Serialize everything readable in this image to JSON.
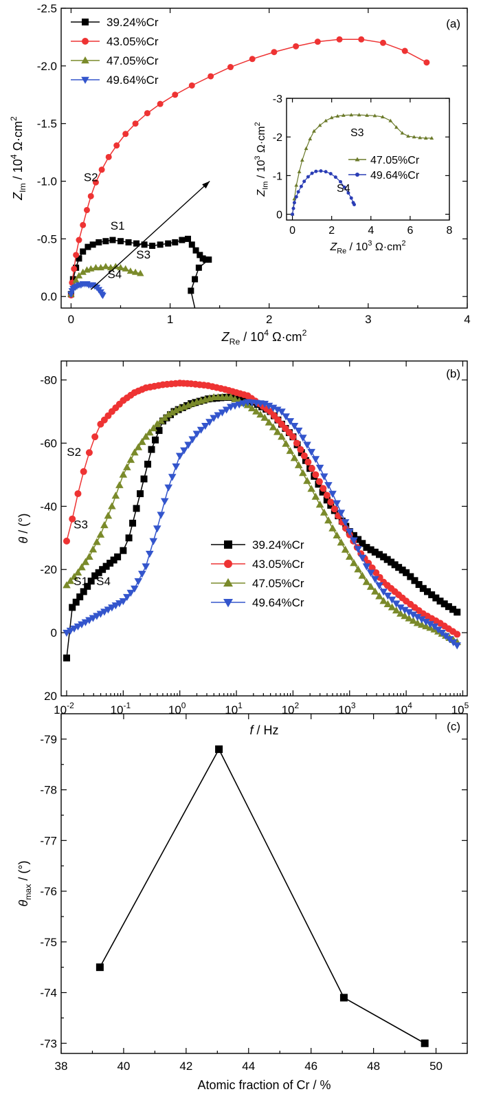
{
  "chart_data": [
    {
      "type": "scatter",
      "panel_label": "(a)",
      "xlabel": {
        "main": "Z",
        "sub": "Re",
        "unit": " / 10",
        "sup": "4",
        "rest": " Ω·cm",
        "sup2": "2"
      },
      "ylabel": {
        "main": "Z",
        "sub": "Im",
        "unit": " / 10",
        "sup": "4",
        "rest": " Ω·cm",
        "sup2": "2"
      },
      "xlim": [
        -0.1,
        4
      ],
      "ylim": [
        0.1,
        -2.5
      ],
      "xticks": [
        {
          "v": 0,
          "label": "0"
        },
        {
          "v": 1,
          "label": "1"
        },
        {
          "v": 2,
          "label": "2"
        },
        {
          "v": 3,
          "label": "3"
        },
        {
          "v": 4,
          "label": "4"
        }
      ],
      "yticks": [
        {
          "v": 0,
          "label": "0.0"
        },
        {
          "v": -0.5,
          "label": "-0.5"
        },
        {
          "v": -1.0,
          "label": "-1.0"
        },
        {
          "v": -1.5,
          "label": "-1.5"
        },
        {
          "v": -2.0,
          "label": "-2.0"
        },
        {
          "v": -2.5,
          "label": "-2.5"
        }
      ],
      "legend_position": "top-left",
      "series": [
        {
          "name": "39.24%Cr",
          "color": "#000000",
          "marker": "square",
          "x": [
            0.0,
            0.02,
            0.05,
            0.08,
            0.12,
            0.17,
            0.22,
            0.28,
            0.35,
            0.42,
            0.5,
            0.58,
            0.66,
            0.74,
            0.82,
            0.9,
            0.98,
            1.05,
            1.12,
            1.18,
            1.22,
            1.26,
            1.3,
            1.33,
            1.36,
            1.39,
            1.29,
            1.25,
            1.21
          ],
          "y": [
            -0.02,
            -0.15,
            -0.25,
            -0.33,
            -0.39,
            -0.43,
            -0.45,
            -0.47,
            -0.48,
            -0.49,
            -0.48,
            -0.47,
            -0.46,
            -0.45,
            -0.44,
            -0.45,
            -0.46,
            -0.47,
            -0.49,
            -0.5,
            -0.45,
            -0.4,
            -0.36,
            -0.33,
            -0.32,
            -0.32,
            -0.25,
            -0.15,
            -0.05
          ]
        },
        {
          "name": "43.05%Cr",
          "color": "#ee3333",
          "marker": "circle",
          "x": [
            0.0,
            0.01,
            0.03,
            0.05,
            0.08,
            0.12,
            0.16,
            0.2,
            0.25,
            0.31,
            0.38,
            0.46,
            0.55,
            0.65,
            0.77,
            0.9,
            1.05,
            1.22,
            1.41,
            1.61,
            1.83,
            2.05,
            2.27,
            2.49,
            2.71,
            2.93,
            3.15,
            3.37,
            3.59
          ],
          "y": [
            -0.01,
            -0.12,
            -0.24,
            -0.36,
            -0.49,
            -0.62,
            -0.75,
            -0.87,
            -0.99,
            -1.1,
            -1.21,
            -1.31,
            -1.41,
            -1.5,
            -1.59,
            -1.67,
            -1.75,
            -1.83,
            -1.91,
            -1.99,
            -2.06,
            -2.12,
            -2.17,
            -2.21,
            -2.23,
            -2.23,
            -2.2,
            -2.13,
            -2.03
          ]
        },
        {
          "name": "47.05%Cr",
          "color": "#7a8a2a",
          "marker": "triangle-up",
          "x": [
            0.0,
            0.02,
            0.05,
            0.08,
            0.12,
            0.16,
            0.2,
            0.25,
            0.3,
            0.35,
            0.4,
            0.45,
            0.5,
            0.55,
            0.6,
            0.65,
            0.7
          ],
          "y": [
            -0.02,
            -0.08,
            -0.14,
            -0.18,
            -0.21,
            -0.23,
            -0.24,
            -0.25,
            -0.25,
            -0.26,
            -0.25,
            -0.26,
            -0.25,
            -0.24,
            -0.22,
            -0.21,
            -0.2
          ]
        },
        {
          "name": "49.64%Cr",
          "color": "#3355cc",
          "marker": "triangle-down",
          "x": [
            0.0,
            0.01,
            0.02,
            0.04,
            0.06,
            0.08,
            0.1,
            0.12,
            0.14,
            0.16,
            0.18,
            0.2,
            0.22,
            0.24,
            0.26,
            0.28,
            0.3,
            0.31,
            0.32
          ],
          "y": [
            -0.02,
            -0.05,
            -0.07,
            -0.08,
            -0.09,
            -0.1,
            -0.1,
            -0.11,
            -0.11,
            -0.11,
            -0.1,
            -0.1,
            -0.1,
            -0.09,
            -0.08,
            -0.06,
            -0.04,
            -0.02,
            -0.01
          ]
        }
      ],
      "annotations": [
        {
          "text": "S1",
          "x": 0.47,
          "y": -0.58
        },
        {
          "text": "S2",
          "x": 0.2,
          "y": -1.0
        },
        {
          "text": "S3",
          "x": 0.73,
          "y": -0.33
        },
        {
          "text": "S4",
          "x": 0.44,
          "y": -0.16
        }
      ],
      "arrow": {
        "x0": 0.2,
        "y0": -0.06,
        "x1": 1.4,
        "y1": -1.0
      },
      "inset": {
        "xlabel": {
          "main": "Z",
          "sub": "Re",
          "unit": " / 10",
          "sup": "3",
          "rest": " Ω·cm",
          "sup2": "2"
        },
        "ylabel": {
          "main": "Z",
          "sub": "Im",
          "unit": " / 10",
          "sup": "3",
          "rest": " Ω·cm",
          "sup2": "2"
        },
        "xlim": [
          -0.3,
          8
        ],
        "ylim": [
          0.15,
          -3
        ],
        "xticks": [
          {
            "v": 0,
            "label": "0"
          },
          {
            "v": 2,
            "label": "2"
          },
          {
            "v": 4,
            "label": "4"
          },
          {
            "v": 6,
            "label": "6"
          },
          {
            "v": 8,
            "label": "8"
          }
        ],
        "yticks": [
          {
            "v": 0,
            "label": "0"
          },
          {
            "v": -1,
            "label": "-1"
          },
          {
            "v": -2,
            "label": "-2"
          },
          {
            "v": -3,
            "label": "-3"
          }
        ],
        "series": [
          {
            "name": "47.05%Cr",
            "color": "#6b7a2a",
            "marker": "triangle-up",
            "x": [
              0.0,
              0.1,
              0.2,
              0.35,
              0.5,
              0.7,
              0.9,
              1.1,
              1.4,
              1.7,
              2.0,
              2.3,
              2.6,
              3.0,
              3.4,
              3.8,
              4.2,
              4.6,
              5.0,
              5.3,
              5.6,
              5.9,
              6.2,
              6.5,
              6.8,
              7.1
            ],
            "y": [
              0.0,
              -0.4,
              -0.75,
              -1.1,
              -1.4,
              -1.7,
              -1.95,
              -2.15,
              -2.3,
              -2.42,
              -2.5,
              -2.54,
              -2.56,
              -2.57,
              -2.57,
              -2.56,
              -2.55,
              -2.52,
              -2.42,
              -2.25,
              -2.1,
              -2.02,
              -2.0,
              -1.98,
              -1.97,
              -1.97
            ]
          },
          {
            "name": "49.64%Cr",
            "color": "#2a3db5",
            "marker": "circle",
            "x": [
              0.0,
              0.05,
              0.1,
              0.2,
              0.3,
              0.45,
              0.6,
              0.8,
              1.0,
              1.2,
              1.45,
              1.7,
              1.95,
              2.2,
              2.45,
              2.65,
              2.85,
              3.0,
              3.1,
              3.15
            ],
            "y": [
              0.0,
              -0.15,
              -0.3,
              -0.45,
              -0.58,
              -0.72,
              -0.85,
              -0.97,
              -1.06,
              -1.11,
              -1.12,
              -1.1,
              -1.05,
              -0.96,
              -0.84,
              -0.7,
              -0.55,
              -0.42,
              -0.3,
              -0.25
            ]
          }
        ],
        "annotations": [
          {
            "text": "S3",
            "x": 3.3,
            "y": -2.02
          },
          {
            "text": "S4",
            "x": 2.6,
            "y": -0.58
          }
        ]
      }
    },
    {
      "type": "scatter",
      "panel_label": "(b)",
      "xlabel": {
        "main": "f",
        "rest": " / Hz"
      },
      "ylabel": {
        "main": "θ",
        "rest": " / (°)"
      },
      "xscale": "log",
      "xlim": [
        0.008,
        120000
      ],
      "ylim": [
        20,
        -86
      ],
      "xticks": [
        {
          "v": 0.01,
          "b": "10",
          "e": "-2"
        },
        {
          "v": 0.1,
          "b": "10",
          "e": "-1"
        },
        {
          "v": 1,
          "b": "10",
          "e": "0"
        },
        {
          "v": 10,
          "b": "10",
          "e": "1"
        },
        {
          "v": 100,
          "b": "10",
          "e": "2"
        },
        {
          "v": 1000,
          "b": "10",
          "e": "3"
        },
        {
          "v": 10000,
          "b": "10",
          "e": "4"
        },
        {
          "v": 100000,
          "b": "10",
          "e": "5"
        }
      ],
      "yticks": [
        {
          "v": 20,
          "label": "20"
        },
        {
          "v": 0,
          "label": "0"
        },
        {
          "v": -20,
          "label": "-20"
        },
        {
          "v": -40,
          "label": "-40"
        },
        {
          "v": -60,
          "label": "-60"
        },
        {
          "v": -80,
          "label": "-80"
        }
      ],
      "legend_position": "center-right",
      "series": [
        {
          "name": "39.24%Cr",
          "color": "#000000",
          "marker": "square",
          "logx": [
            -2.0,
            -1.9,
            -1.7,
            -1.5,
            -1.3,
            -1.1,
            -1.0,
            -0.9,
            -0.7,
            -0.5,
            -0.3,
            -0.1,
            0.2,
            0.5,
            0.8,
            1.0,
            1.3,
            1.6,
            2.0,
            2.3,
            2.6,
            3.0,
            3.3,
            3.6,
            4.0,
            4.3,
            4.6,
            4.9
          ],
          "y": [
            8,
            -8,
            -13,
            -18,
            -21,
            -24,
            -26,
            -30,
            -44,
            -58,
            -67,
            -70,
            -72.5,
            -74,
            -74.5,
            -74.5,
            -73,
            -70,
            -62,
            -52,
            -42,
            -32,
            -27,
            -24,
            -19,
            -14,
            -10,
            -6.5
          ]
        },
        {
          "name": "43.05%Cr",
          "color": "#ee3333",
          "marker": "circle",
          "logx": [
            -2.0,
            -1.9,
            -1.8,
            -1.7,
            -1.6,
            -1.5,
            -1.4,
            -1.2,
            -1.0,
            -0.8,
            -0.6,
            -0.3,
            0.0,
            0.2,
            0.5,
            0.8,
            1.2,
            1.6,
            2.0,
            2.4,
            2.8,
            3.2,
            3.6,
            4.0,
            4.3,
            4.6,
            4.9
          ],
          "y": [
            -29,
            -36,
            -44,
            -51,
            -57,
            -62,
            -66,
            -70,
            -73.5,
            -76,
            -77.5,
            -78.5,
            -79,
            -78.8,
            -78.2,
            -77,
            -75,
            -70,
            -62,
            -50,
            -37,
            -25,
            -16,
            -10,
            -6,
            -3,
            0.5
          ]
        },
        {
          "name": "47.05%Cr",
          "color": "#7a8a2a",
          "marker": "triangle-up",
          "logx": [
            -2.0,
            -1.8,
            -1.6,
            -1.4,
            -1.2,
            -1.0,
            -0.8,
            -0.6,
            -0.4,
            -0.2,
            0.0,
            0.3,
            0.6,
            0.9,
            1.2,
            1.5,
            1.8,
            2.1,
            2.4,
            2.7,
            3.0,
            3.3,
            3.6,
            3.9,
            4.2,
            4.5,
            4.9
          ],
          "y": [
            -15,
            -19,
            -24,
            -31,
            -40,
            -50,
            -57,
            -62,
            -66,
            -69,
            -71,
            -73,
            -74.5,
            -74.5,
            -72,
            -68,
            -62,
            -53,
            -43,
            -33,
            -24,
            -16,
            -10,
            -6,
            -3,
            -1,
            3
          ]
        },
        {
          "name": "49.64%Cr",
          "color": "#3355cc",
          "marker": "triangle-down",
          "logx": [
            -2.0,
            -1.8,
            -1.6,
            -1.4,
            -1.2,
            -1.0,
            -0.8,
            -0.6,
            -0.4,
            -0.2,
            0.0,
            0.3,
            0.6,
            0.9,
            1.2,
            1.5,
            1.8,
            2.1,
            2.4,
            2.7,
            3.0,
            3.3,
            3.6,
            3.9,
            4.2,
            4.5,
            4.9
          ],
          "y": [
            0,
            -2,
            -4,
            -6,
            -8,
            -10,
            -14,
            -21,
            -33,
            -46,
            -56,
            -63,
            -68,
            -71.5,
            -73,
            -72.5,
            -70,
            -64,
            -55,
            -44,
            -32,
            -21,
            -13,
            -8,
            -5,
            -2,
            4
          ]
        }
      ],
      "annotations": [
        {
          "text": "S2",
          "logx": -1.87,
          "y": -56
        },
        {
          "text": "S3",
          "logx": -1.75,
          "y": -33
        },
        {
          "text": "S1",
          "logx": -1.75,
          "y": -15
        },
        {
          "text": "S4",
          "logx": -1.35,
          "y": -15
        }
      ]
    },
    {
      "type": "line",
      "panel_label": "(c)",
      "xlabel": {
        "main": "Atomic fraction of Cr / %"
      },
      "ylabel": {
        "main": "θ",
        "sub": "max",
        "rest": " / (°)"
      },
      "xlim": [
        38,
        51
      ],
      "ylim": [
        -72.8,
        -79.5
      ],
      "xticks": [
        {
          "v": 38,
          "label": "38"
        },
        {
          "v": 40,
          "label": "40"
        },
        {
          "v": 42,
          "label": "42"
        },
        {
          "v": 44,
          "label": "44"
        },
        {
          "v": 46,
          "label": "46"
        },
        {
          "v": 48,
          "label": "48"
        },
        {
          "v": 50,
          "label": "50"
        }
      ],
      "yticks": [
        {
          "v": -73,
          "label": "-73"
        },
        {
          "v": -74,
          "label": "-74"
        },
        {
          "v": -75,
          "label": "-75"
        },
        {
          "v": -76,
          "label": "-76"
        },
        {
          "v": -77,
          "label": "-77"
        },
        {
          "v": -78,
          "label": "-78"
        },
        {
          "v": -79,
          "label": "-79"
        }
      ],
      "series": [
        {
          "color": "#000000",
          "marker": "square",
          "x": [
            39.24,
            43.05,
            47.05,
            49.64
          ],
          "y": [
            -74.5,
            -78.8,
            -73.9,
            -73.0
          ]
        }
      ]
    }
  ]
}
